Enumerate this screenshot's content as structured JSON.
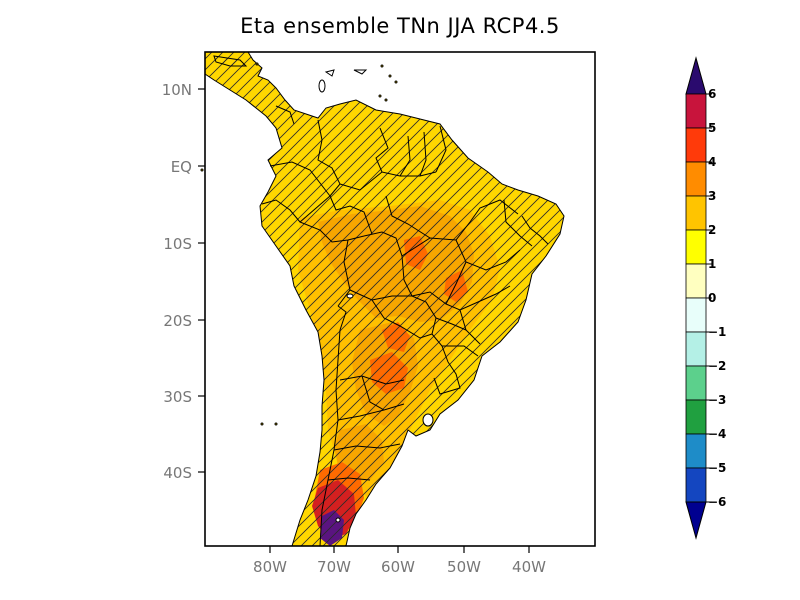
{
  "title": "Eta ensemble TNn JJA RCP4.5",
  "lat_labels": [
    "10N",
    "EQ",
    "10S",
    "20S",
    "30S",
    "40S"
  ],
  "lon_labels": [
    "80W",
    "70W",
    "60W",
    "50W",
    "40W"
  ],
  "colorbar": {
    "labels": [
      "6",
      "5",
      "4",
      "3",
      "2",
      "1",
      "0",
      "−1",
      "−2",
      "−3",
      "−4",
      "−5",
      "−6"
    ],
    "colors": [
      "#2a0a6e",
      "#c8143c",
      "#ff3a0a",
      "#ff8c00",
      "#ffc400",
      "#ffff00",
      "#ffffc0",
      "#e8fefa",
      "#b4f0e6",
      "#5cd08c",
      "#20a040",
      "#1e8cc8",
      "#1446c0",
      "#000090"
    ]
  },
  "colors": {
    "land_base": "#ffd700",
    "land_warm": "#ffc000",
    "anomaly_3": "#f7a600",
    "anomaly_4": "#ff6a00",
    "anomaly_5": "#d42020",
    "anomaly_6": "#5a1480"
  }
}
